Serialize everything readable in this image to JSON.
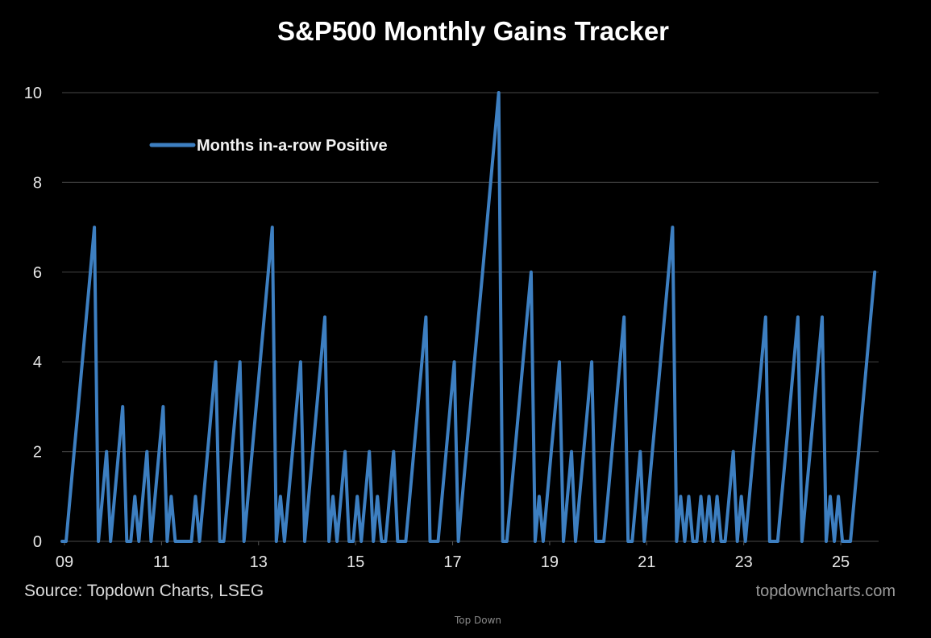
{
  "chart_data": {
    "type": "line",
    "title": "S&P500 Monthly Gains Tracker",
    "xlabel": "",
    "ylabel": "",
    "ylim": [
      0,
      10
    ],
    "yticks": [
      0,
      2,
      4,
      6,
      8,
      10
    ],
    "xtick_labels": [
      "09",
      "11",
      "13",
      "15",
      "17",
      "19",
      "21",
      "23",
      "25"
    ],
    "xtick_years": [
      2009,
      2011,
      2013,
      2015,
      2017,
      2019,
      2021,
      2023,
      2025
    ],
    "x_start": "2009-01",
    "x_end": "2025-10",
    "grid": true,
    "legend_position": "top-left",
    "series": [
      {
        "name": "Months in-a-row Positive",
        "color": "#3d7fc1",
        "frequency": "monthly",
        "start": "2009-01",
        "values": [
          0,
          0,
          1,
          2,
          3,
          4,
          5,
          6,
          7,
          0,
          1,
          2,
          0,
          1,
          2,
          3,
          0,
          0,
          1,
          0,
          1,
          2,
          0,
          1,
          2,
          3,
          0,
          1,
          0,
          0,
          0,
          0,
          0,
          1,
          0,
          1,
          2,
          3,
          4,
          0,
          0,
          1,
          2,
          3,
          4,
          0,
          1,
          2,
          3,
          4,
          5,
          6,
          7,
          0,
          1,
          0,
          1,
          2,
          3,
          4,
          0,
          1,
          2,
          3,
          4,
          5,
          0,
          1,
          0,
          1,
          2,
          0,
          0,
          1,
          0,
          1,
          2,
          0,
          1,
          0,
          0,
          1,
          2,
          0,
          0,
          0,
          1,
          2,
          3,
          4,
          5,
          0,
          0,
          0,
          1,
          2,
          3,
          4,
          0,
          1,
          2,
          3,
          4,
          5,
          6,
          7,
          8,
          9,
          10,
          0,
          0,
          1,
          2,
          3,
          4,
          5,
          6,
          0,
          1,
          0,
          1,
          2,
          3,
          4,
          0,
          1,
          2,
          0,
          1,
          2,
          3,
          4,
          0,
          0,
          0,
          1,
          2,
          3,
          4,
          5,
          0,
          0,
          1,
          2,
          0,
          1,
          2,
          3,
          4,
          5,
          6,
          7,
          0,
          1,
          0,
          1,
          0,
          0,
          1,
          0,
          1,
          0,
          1,
          0,
          0,
          1,
          2,
          0,
          1,
          0,
          1,
          2,
          3,
          4,
          5,
          0,
          0,
          0,
          1,
          2,
          3,
          4,
          5,
          0,
          1,
          2,
          3,
          4,
          5,
          0,
          1,
          0,
          1,
          0,
          0,
          0,
          1,
          2,
          3,
          4,
          5,
          6
        ]
      }
    ],
    "annotations": {
      "source": "Source: Topdown Charts, LSEG",
      "site": "topdowncharts.com"
    }
  },
  "footer": {
    "watermark": "Top Down"
  }
}
